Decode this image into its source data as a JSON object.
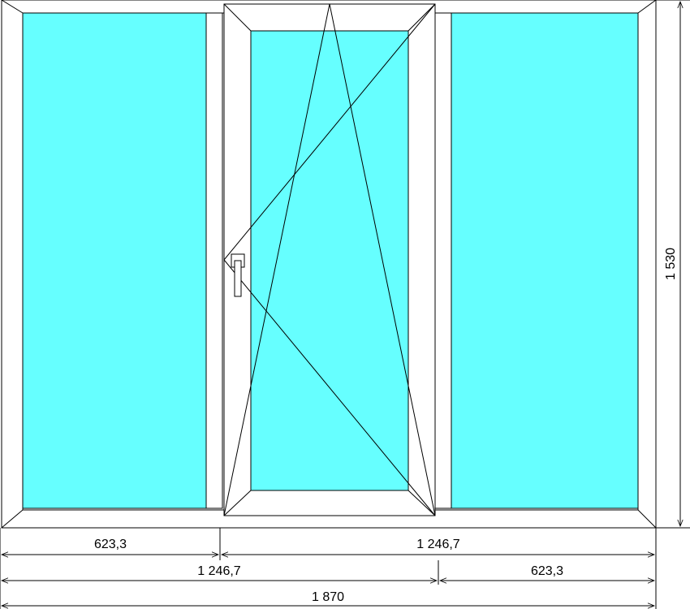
{
  "colors": {
    "glass": "#66ffff",
    "frame": "#ffffff",
    "line": "#000000"
  },
  "window": {
    "panes": [
      {
        "name": "left-fixed-pane",
        "type": "fixed"
      },
      {
        "name": "center-sash-pane",
        "type": "tilt-turn",
        "handle": "left"
      },
      {
        "name": "right-fixed-pane",
        "type": "fixed"
      }
    ]
  },
  "dimensions": {
    "height_label": "1 530",
    "row1_left": "623,3",
    "row1_right": "1 246,7",
    "row2_left": "1 246,7",
    "row2_right": "623,3",
    "total": "1 870"
  }
}
